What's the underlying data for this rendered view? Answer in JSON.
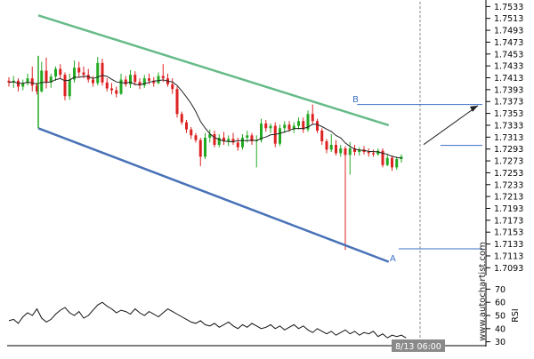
{
  "watermark": "www.autochartist.com",
  "time_label": "8/13 06:00",
  "chart_data": [
    {
      "type": "candlestick",
      "price_ticks": [
        "1.7533",
        "1.7513",
        "1.7493",
        "1.7473",
        "1.7453",
        "1.7433",
        "1.7413",
        "1.7393",
        "1.7373",
        "1.7353",
        "1.7333",
        "1.7313",
        "1.7293",
        "1.7273",
        "1.7253",
        "1.7233",
        "1.7213",
        "1.7193",
        "1.7173",
        "1.7153",
        "1.7133",
        "1.7113",
        "1.7093"
      ],
      "ylim": [
        1.7083,
        1.7538
      ],
      "grid": false,
      "colors": {
        "up": "#22aa22",
        "down": "#dd2222",
        "upper_channel": "#66bb88",
        "lower_channel": "#4a73b8",
        "moving_average": "#222222",
        "level_lines": "#3b6fc4",
        "arrow": "#222222",
        "vertical_marker": "#888888"
      },
      "channel": {
        "upper_line": [
          {
            "i": 0,
            "y": 1.7518
          },
          {
            "i": 79,
            "y": 1.7333
          }
        ],
        "lower_line": [
          {
            "i": 0,
            "y": 1.7328
          },
          {
            "i": 79,
            "y": 1.7103
          }
        ]
      },
      "point_labels": [
        {
          "label": "B",
          "i": 65,
          "y": 1.7368
        },
        {
          "label": "A",
          "i": 72,
          "y": 1.7123
        }
      ],
      "target_levels": [
        1.7368,
        1.7299,
        1.7125
      ],
      "forecast_arrow": {
        "from": {
          "i": 79,
          "y": 1.7299
        },
        "to": {
          "i": 92,
          "y": 1.7366
        }
      },
      "ohlc": [
        [
          1.7408,
          1.7414,
          1.7398,
          1.7405
        ],
        [
          1.7405,
          1.7416,
          1.7396,
          1.7408
        ],
        [
          1.7408,
          1.7412,
          1.739,
          1.7398
        ],
        [
          1.7398,
          1.741,
          1.7392,
          1.7404
        ],
        [
          1.7404,
          1.742,
          1.74,
          1.7412
        ],
        [
          1.7412,
          1.7432,
          1.739,
          1.74
        ],
        [
          1.74,
          1.7405,
          1.7385,
          1.739
        ],
        [
          1.739,
          1.744,
          1.7388,
          1.7425
        ],
        [
          1.7425,
          1.7447,
          1.7395,
          1.7405
        ],
        [
          1.7405,
          1.742,
          1.7396,
          1.7415
        ],
        [
          1.7415,
          1.7432,
          1.7408,
          1.7428
        ],
        [
          1.7428,
          1.7436,
          1.7412,
          1.7418
        ],
        [
          1.7418,
          1.7422,
          1.7375,
          1.7382
        ],
        [
          1.7382,
          1.742,
          1.7376,
          1.741
        ],
        [
          1.741,
          1.7442,
          1.7405,
          1.743
        ],
        [
          1.743,
          1.744,
          1.7415,
          1.7422
        ],
        [
          1.7422,
          1.7432,
          1.7412,
          1.7418
        ],
        [
          1.7418,
          1.7428,
          1.7405,
          1.741
        ],
        [
          1.741,
          1.7416,
          1.7398,
          1.7404
        ],
        [
          1.7404,
          1.7448,
          1.74,
          1.7438
        ],
        [
          1.7438,
          1.7445,
          1.74,
          1.7405
        ],
        [
          1.7405,
          1.7412,
          1.739,
          1.7395
        ],
        [
          1.7395,
          1.7404,
          1.7385,
          1.7392
        ],
        [
          1.7392,
          1.7398,
          1.738,
          1.7386
        ],
        [
          1.7386,
          1.742,
          1.7384,
          1.741
        ],
        [
          1.741,
          1.7416,
          1.7398,
          1.7402
        ],
        [
          1.7402,
          1.7426,
          1.7396,
          1.7418
        ],
        [
          1.7418,
          1.7424,
          1.74,
          1.7406
        ],
        [
          1.7406,
          1.7412,
          1.7394,
          1.74
        ],
        [
          1.74,
          1.7418,
          1.7396,
          1.7412
        ],
        [
          1.7412,
          1.742,
          1.7402,
          1.7408
        ],
        [
          1.7408,
          1.7414,
          1.7398,
          1.7404
        ],
        [
          1.7404,
          1.7422,
          1.7402,
          1.7416
        ],
        [
          1.7416,
          1.7436,
          1.7406,
          1.7412
        ],
        [
          1.7412,
          1.742,
          1.7398,
          1.7402
        ],
        [
          1.7402,
          1.7412,
          1.7386,
          1.7394
        ],
        [
          1.7394,
          1.7398,
          1.7346,
          1.7352
        ],
        [
          1.7352,
          1.7356,
          1.7334,
          1.7338
        ],
        [
          1.7338,
          1.7342,
          1.732,
          1.7326
        ],
        [
          1.7326,
          1.733,
          1.731,
          1.7316
        ],
        [
          1.7316,
          1.732,
          1.7304,
          1.7308
        ],
        [
          1.7308,
          1.7312,
          1.7264,
          1.728
        ],
        [
          1.728,
          1.732,
          1.7276,
          1.7312
        ],
        [
          1.7312,
          1.7326,
          1.7304,
          1.7318
        ],
        [
          1.7318,
          1.7324,
          1.7296,
          1.73
        ],
        [
          1.73,
          1.7318,
          1.7296,
          1.7312
        ],
        [
          1.7312,
          1.7322,
          1.73,
          1.7306
        ],
        [
          1.7306,
          1.7316,
          1.7298,
          1.731
        ],
        [
          1.731,
          1.732,
          1.73,
          1.7304
        ],
        [
          1.7304,
          1.7312,
          1.729,
          1.7296
        ],
        [
          1.7296,
          1.7318,
          1.7292,
          1.7312
        ],
        [
          1.7312,
          1.7324,
          1.7304,
          1.7316
        ],
        [
          1.7316,
          1.732,
          1.73,
          1.7306
        ],
        [
          1.7306,
          1.7316,
          1.7262,
          1.7308
        ],
        [
          1.7308,
          1.7344,
          1.7304,
          1.7336
        ],
        [
          1.7336,
          1.7342,
          1.7322,
          1.7328
        ],
        [
          1.7328,
          1.7336,
          1.732,
          1.7332
        ],
        [
          1.7332,
          1.7338,
          1.7296,
          1.7302
        ],
        [
          1.7302,
          1.7334,
          1.7298,
          1.7328
        ],
        [
          1.7328,
          1.734,
          1.732,
          1.7334
        ],
        [
          1.7334,
          1.734,
          1.7322,
          1.7326
        ],
        [
          1.7326,
          1.7338,
          1.732,
          1.7332
        ],
        [
          1.7332,
          1.7346,
          1.7326,
          1.734
        ],
        [
          1.734,
          1.7346,
          1.732,
          1.7326
        ],
        [
          1.7326,
          1.7358,
          1.7322,
          1.7352
        ],
        [
          1.7352,
          1.7368,
          1.7334,
          1.734
        ],
        [
          1.734,
          1.7344,
          1.732,
          1.7324
        ],
        [
          1.7324,
          1.7328,
          1.73,
          1.7306
        ],
        [
          1.7306,
          1.731,
          1.7286,
          1.7292
        ],
        [
          1.7292,
          1.7318,
          1.7288,
          1.73
        ],
        [
          1.73,
          1.7308,
          1.7282,
          1.7286
        ],
        [
          1.7286,
          1.73,
          1.728,
          1.7294
        ],
        [
          1.7294,
          1.7298,
          1.7123,
          1.7283
        ],
        [
          1.7283,
          1.7305,
          1.725,
          1.7294
        ],
        [
          1.7294,
          1.73,
          1.7282,
          1.7288
        ],
        [
          1.7288,
          1.7296,
          1.7282,
          1.7292
        ],
        [
          1.7292,
          1.7298,
          1.7284,
          1.7288
        ],
        [
          1.7288,
          1.7294,
          1.728,
          1.7286
        ],
        [
          1.7286,
          1.7292,
          1.728,
          1.7284
        ],
        [
          1.7284,
          1.7294,
          1.7282,
          1.729
        ],
        [
          1.729,
          1.7294,
          1.7262,
          1.7266
        ],
        [
          1.7266,
          1.7284,
          1.7264,
          1.7278
        ],
        [
          1.7278,
          1.7282,
          1.7256,
          1.7262
        ],
        [
          1.7262,
          1.728,
          1.7258,
          1.7276
        ],
        [
          1.7276,
          1.7284,
          1.727,
          1.728
        ]
      ]
    },
    {
      "type": "line",
      "ylabel": "RSI",
      "ticks": [
        "70",
        "60",
        "50",
        "40",
        "30"
      ],
      "ylim": [
        25,
        75
      ],
      "values": [
        46,
        47,
        44,
        49,
        52,
        50,
        55,
        48,
        45,
        47,
        51,
        54,
        56,
        52,
        50,
        53,
        48,
        50,
        54,
        58,
        60,
        57,
        55,
        52,
        54,
        53,
        51,
        55,
        52,
        50,
        53,
        51,
        49,
        52,
        55,
        53,
        51,
        49,
        47,
        45,
        44,
        46,
        43,
        42,
        44,
        41,
        43,
        45,
        42,
        40,
        43,
        41,
        44,
        42,
        40,
        41,
        43,
        40,
        42,
        39,
        41,
        43,
        40,
        42,
        39,
        37,
        40,
        38,
        36,
        38,
        35,
        37,
        39,
        36,
        38,
        35,
        37,
        36,
        38,
        34,
        36,
        33,
        35,
        34,
        35,
        33
      ]
    }
  ]
}
